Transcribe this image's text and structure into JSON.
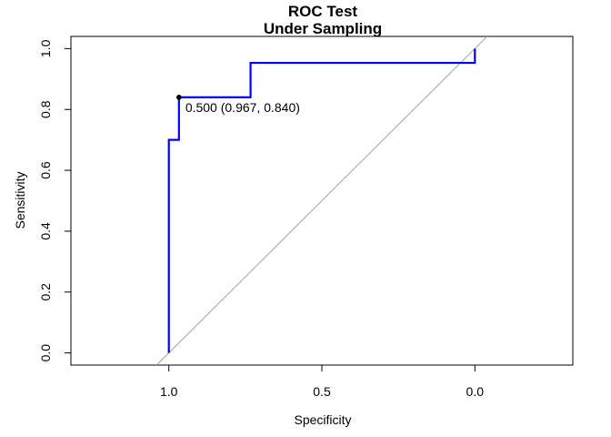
{
  "chart_data": {
    "type": "line",
    "title": "ROC Test",
    "subtitle": "Under Sampling",
    "xlabel": "Specificity",
    "ylabel": "Sensitivity",
    "xlim": [
      1.32,
      -0.32
    ],
    "ylim": [
      -0.04,
      1.04
    ],
    "x_reversed": true,
    "x_ticks": [
      1.0,
      0.5,
      0.0
    ],
    "x_tick_labels": [
      "1.0",
      "0.5",
      "0.0"
    ],
    "y_ticks": [
      0.0,
      0.2,
      0.4,
      0.6,
      0.8,
      1.0
    ],
    "y_tick_labels": [
      "0.0",
      "0.2",
      "0.4",
      "0.6",
      "0.8",
      "1.0"
    ],
    "grid": false,
    "series": [
      {
        "color": "#0000ff",
        "specificity": [
          1.0,
          1.0,
          0.967,
          0.967,
          0.733,
          0.733,
          0.0,
          0.0
        ],
        "sensitivity": [
          0.0,
          0.7,
          0.7,
          0.84,
          0.84,
          0.953,
          0.953,
          1.0
        ]
      }
    ],
    "diagonal": {
      "color": "#a0a0a0",
      "from": [
        1.0,
        0.0
      ],
      "to": [
        0.0,
        1.0
      ]
    },
    "threshold_point": {
      "specificity": 0.967,
      "sensitivity": 0.84,
      "label": "0.500 (0.967, 0.840)",
      "color": "#000000"
    }
  }
}
